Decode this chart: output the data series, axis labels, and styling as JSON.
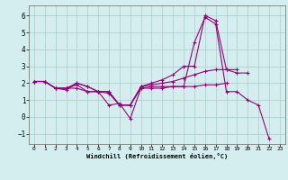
{
  "background_color": "#d4eef0",
  "grid_color": "#aacccc",
  "line_color": "#990077",
  "marker": "+",
  "xlabel": "Windchill (Refroidissement éolien,°C)",
  "xlim": [
    -0.5,
    23.5
  ],
  "ylim": [
    -1.6,
    6.6
  ],
  "yticks": [
    -1,
    0,
    1,
    2,
    3,
    4,
    5,
    6
  ],
  "xticks": [
    0,
    1,
    2,
    3,
    4,
    5,
    6,
    7,
    8,
    9,
    10,
    11,
    12,
    13,
    14,
    15,
    16,
    17,
    18,
    19,
    20,
    21,
    22,
    23
  ],
  "series": [
    {
      "x": [
        0,
        1,
        2,
        3,
        4,
        5,
        6,
        7,
        8,
        9,
        10,
        11,
        12,
        13,
        14,
        15,
        16,
        17,
        18,
        19,
        20,
        21,
        22
      ],
      "y": [
        2.1,
        2.1,
        1.7,
        1.6,
        2.0,
        1.8,
        1.5,
        0.7,
        0.8,
        -0.1,
        1.7,
        1.8,
        1.8,
        1.8,
        1.8,
        4.4,
        5.9,
        5.5,
        1.5,
        1.5,
        1.0,
        0.7,
        -1.3
      ]
    },
    {
      "x": [
        0,
        1,
        2,
        3,
        4,
        5,
        6,
        7,
        8,
        9,
        10,
        11,
        12,
        13,
        14,
        15,
        16,
        17,
        18,
        19,
        20
      ],
      "y": [
        2.1,
        2.1,
        1.7,
        1.7,
        2.0,
        1.8,
        1.5,
        1.5,
        0.7,
        0.7,
        1.8,
        2.0,
        2.2,
        2.5,
        3.0,
        3.0,
        6.0,
        5.7,
        2.8,
        2.6,
        2.6
      ]
    },
    {
      "x": [
        0,
        1,
        2,
        3,
        4,
        5,
        6,
        7,
        8,
        9,
        10,
        11,
        12,
        13,
        14,
        15,
        16,
        17,
        18,
        19
      ],
      "y": [
        2.1,
        2.1,
        1.7,
        1.7,
        1.9,
        1.5,
        1.5,
        1.5,
        0.7,
        0.7,
        1.8,
        1.9,
        2.0,
        2.1,
        2.3,
        2.5,
        2.7,
        2.8,
        2.8,
        2.8
      ]
    },
    {
      "x": [
        0,
        1,
        2,
        3,
        4,
        5,
        6,
        7,
        8,
        9,
        10,
        11,
        12,
        13,
        14,
        15,
        16,
        17,
        18
      ],
      "y": [
        2.1,
        2.1,
        1.7,
        1.7,
        1.7,
        1.5,
        1.5,
        1.4,
        0.7,
        0.7,
        1.7,
        1.7,
        1.7,
        1.8,
        1.8,
        1.8,
        1.9,
        1.9,
        2.0
      ]
    }
  ]
}
